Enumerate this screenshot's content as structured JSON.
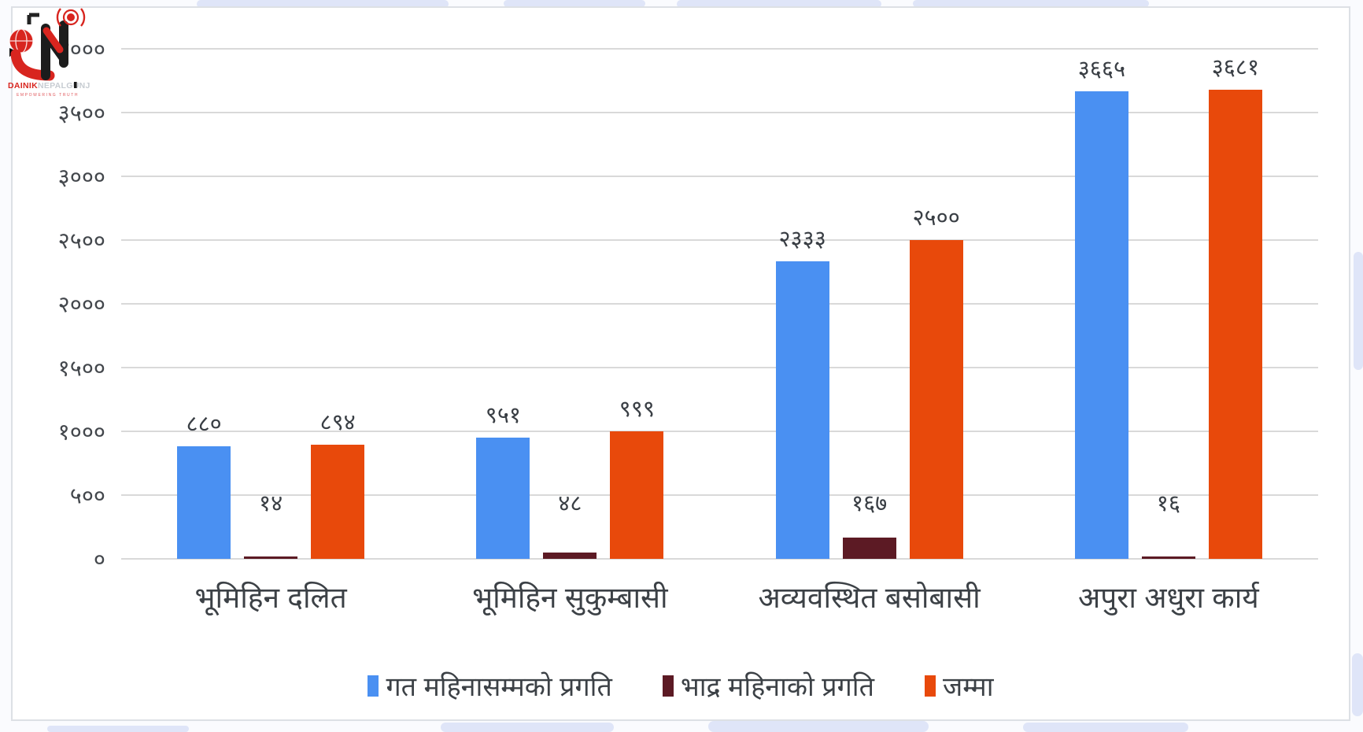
{
  "logo": {
    "name": "Dainik Nepalgunj logo",
    "text_primary": "DAINIK",
    "text_secondary": "NEPALGUNJ",
    "tagline": "EMPOWERING TRUTH",
    "colors": {
      "red": "#d8251f",
      "black": "#1c1c1c",
      "gray": "#c7ccd2"
    }
  },
  "chart_data": {
    "type": "bar",
    "title": "",
    "xlabel": "",
    "ylabel": "",
    "grid": true,
    "legend_position": "bottom",
    "categories": [
      "भूमिहिन दलित",
      "भूमिहिन सुकुम्बासी",
      "अव्यवस्थित बसोबासी",
      "अपुरा अधुरा कार्य"
    ],
    "series": [
      {
        "name": "गत महिनासम्मको प्रगति",
        "color": "#4a90f2",
        "values": [
          880,
          951,
          2333,
          3665
        ],
        "labels": [
          "८८०",
          "९५१",
          "२३३३",
          "३६६५"
        ]
      },
      {
        "name": "भाद्र महिनाको प्रगति",
        "color": "#5c1a24",
        "values": [
          14,
          48,
          167,
          16
        ],
        "labels": [
          "१४",
          "४८",
          "१६७",
          "१६"
        ]
      },
      {
        "name": "जम्मा",
        "color": "#e8490b",
        "values": [
          894,
          999,
          2500,
          3681
        ],
        "labels": [
          "८९४",
          "९९९",
          "२५००",
          "३६८१"
        ]
      }
    ],
    "y_axis": {
      "min": 0,
      "max": 4000,
      "step": 500,
      "tick_labels": [
        "०",
        "५००",
        "१०००",
        "१५००",
        "२०००",
        "२५००",
        "३०००",
        "३५००",
        "४०००"
      ]
    }
  }
}
